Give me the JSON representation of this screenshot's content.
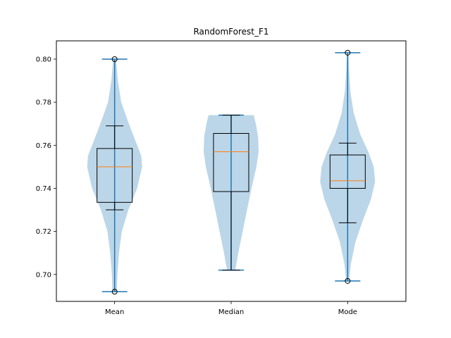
{
  "chart_data": {
    "type": "violin+box",
    "title": "RandomForest_F1",
    "xlabel": "",
    "ylabel": "",
    "categories": [
      "Mean",
      "Median",
      "Mode"
    ],
    "ylim": [
      0.6875,
      0.8085
    ],
    "yticks": [
      "0.70",
      "0.72",
      "0.74",
      "0.76",
      "0.78",
      "0.80"
    ],
    "grid": false,
    "series": [
      {
        "category": "Mean",
        "violin_range": [
          0.692,
          0.8
        ],
        "box": {
          "q1": 0.7335,
          "median": 0.75,
          "q3": 0.7585,
          "whisker_low": 0.73,
          "whisker_high": 0.769
        },
        "outliers": [
          0.8,
          0.692
        ],
        "violin_profile": [
          [
            0.692,
            0.08
          ],
          [
            0.7,
            0.1
          ],
          [
            0.71,
            0.16
          ],
          [
            0.72,
            0.26
          ],
          [
            0.73,
            0.5
          ],
          [
            0.74,
            0.82
          ],
          [
            0.75,
            1.0
          ],
          [
            0.755,
            0.97
          ],
          [
            0.76,
            0.82
          ],
          [
            0.77,
            0.52
          ],
          [
            0.78,
            0.24
          ],
          [
            0.79,
            0.12
          ],
          [
            0.8,
            0.05
          ]
        ]
      },
      {
        "category": "Median",
        "violin_range": [
          0.702,
          0.774
        ],
        "box": {
          "q1": 0.7385,
          "median": 0.757,
          "q3": 0.7655,
          "whisker_low": 0.702,
          "whisker_high": 0.774
        },
        "outliers": [],
        "violin_profile": [
          [
            0.702,
            0.15
          ],
          [
            0.71,
            0.26
          ],
          [
            0.72,
            0.42
          ],
          [
            0.73,
            0.58
          ],
          [
            0.74,
            0.74
          ],
          [
            0.75,
            0.92
          ],
          [
            0.757,
            1.0
          ],
          [
            0.764,
            0.98
          ],
          [
            0.77,
            0.9
          ],
          [
            0.774,
            0.82
          ]
        ]
      },
      {
        "category": "Mode",
        "violin_range": [
          0.697,
          0.803
        ],
        "box": {
          "q1": 0.74,
          "median": 0.7435,
          "q3": 0.7555,
          "whisker_low": 0.724,
          "whisker_high": 0.761
        },
        "outliers": [
          0.803,
          0.697
        ],
        "violin_profile": [
          [
            0.697,
            0.05
          ],
          [
            0.705,
            0.12
          ],
          [
            0.715,
            0.28
          ],
          [
            0.725,
            0.55
          ],
          [
            0.735,
            0.85
          ],
          [
            0.743,
            1.0
          ],
          [
            0.75,
            0.95
          ],
          [
            0.757,
            0.75
          ],
          [
            0.765,
            0.46
          ],
          [
            0.775,
            0.22
          ],
          [
            0.785,
            0.1
          ],
          [
            0.795,
            0.05
          ],
          [
            0.803,
            0.03
          ]
        ]
      }
    ],
    "colors": {
      "violin_fill": "#1f77b4",
      "violin_alpha": 0.3,
      "range_line": "#1f77b4",
      "box_edge": "#000000",
      "median_line": "#ff7f0e",
      "outlier_edge": "#000000"
    }
  }
}
